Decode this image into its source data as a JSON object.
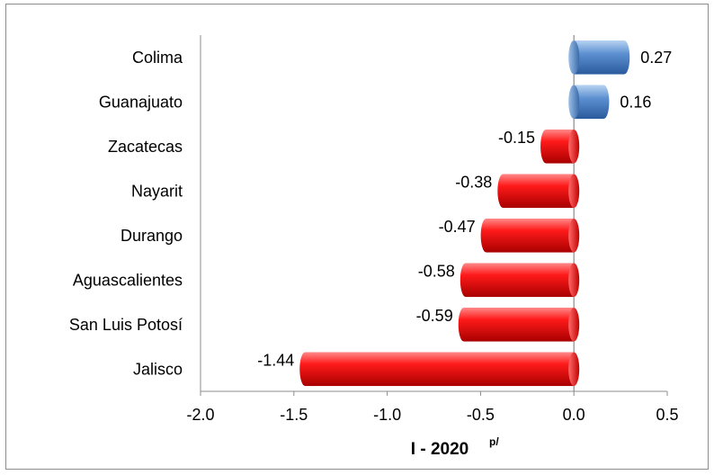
{
  "chart_data": {
    "type": "bar",
    "orientation": "horizontal",
    "categories": [
      "Colima",
      "Guanajuato",
      "Zacatecas",
      "Nayarit",
      "Durango",
      "Aguascalientes",
      "San Luis Potosí",
      "Jalisco"
    ],
    "values": [
      0.27,
      0.16,
      -0.15,
      -0.38,
      -0.47,
      -0.58,
      -0.59,
      -1.44
    ],
    "data_labels": [
      "0.27",
      "0.16",
      "-0.15",
      "-0.38",
      "-0.47",
      "-0.58",
      "-0.59",
      "-1.44"
    ],
    "xlabel": "I - 2020",
    "xlabel_superscript": "p/",
    "xlim": [
      -2.0,
      0.5
    ],
    "xticks": [
      "-2.0",
      "-1.5",
      "-1.0",
      "-0.5",
      "0.0",
      "0.5"
    ],
    "grid": false,
    "colors": {
      "positive": "#4f81bd",
      "negative": "#e31a1c"
    }
  }
}
